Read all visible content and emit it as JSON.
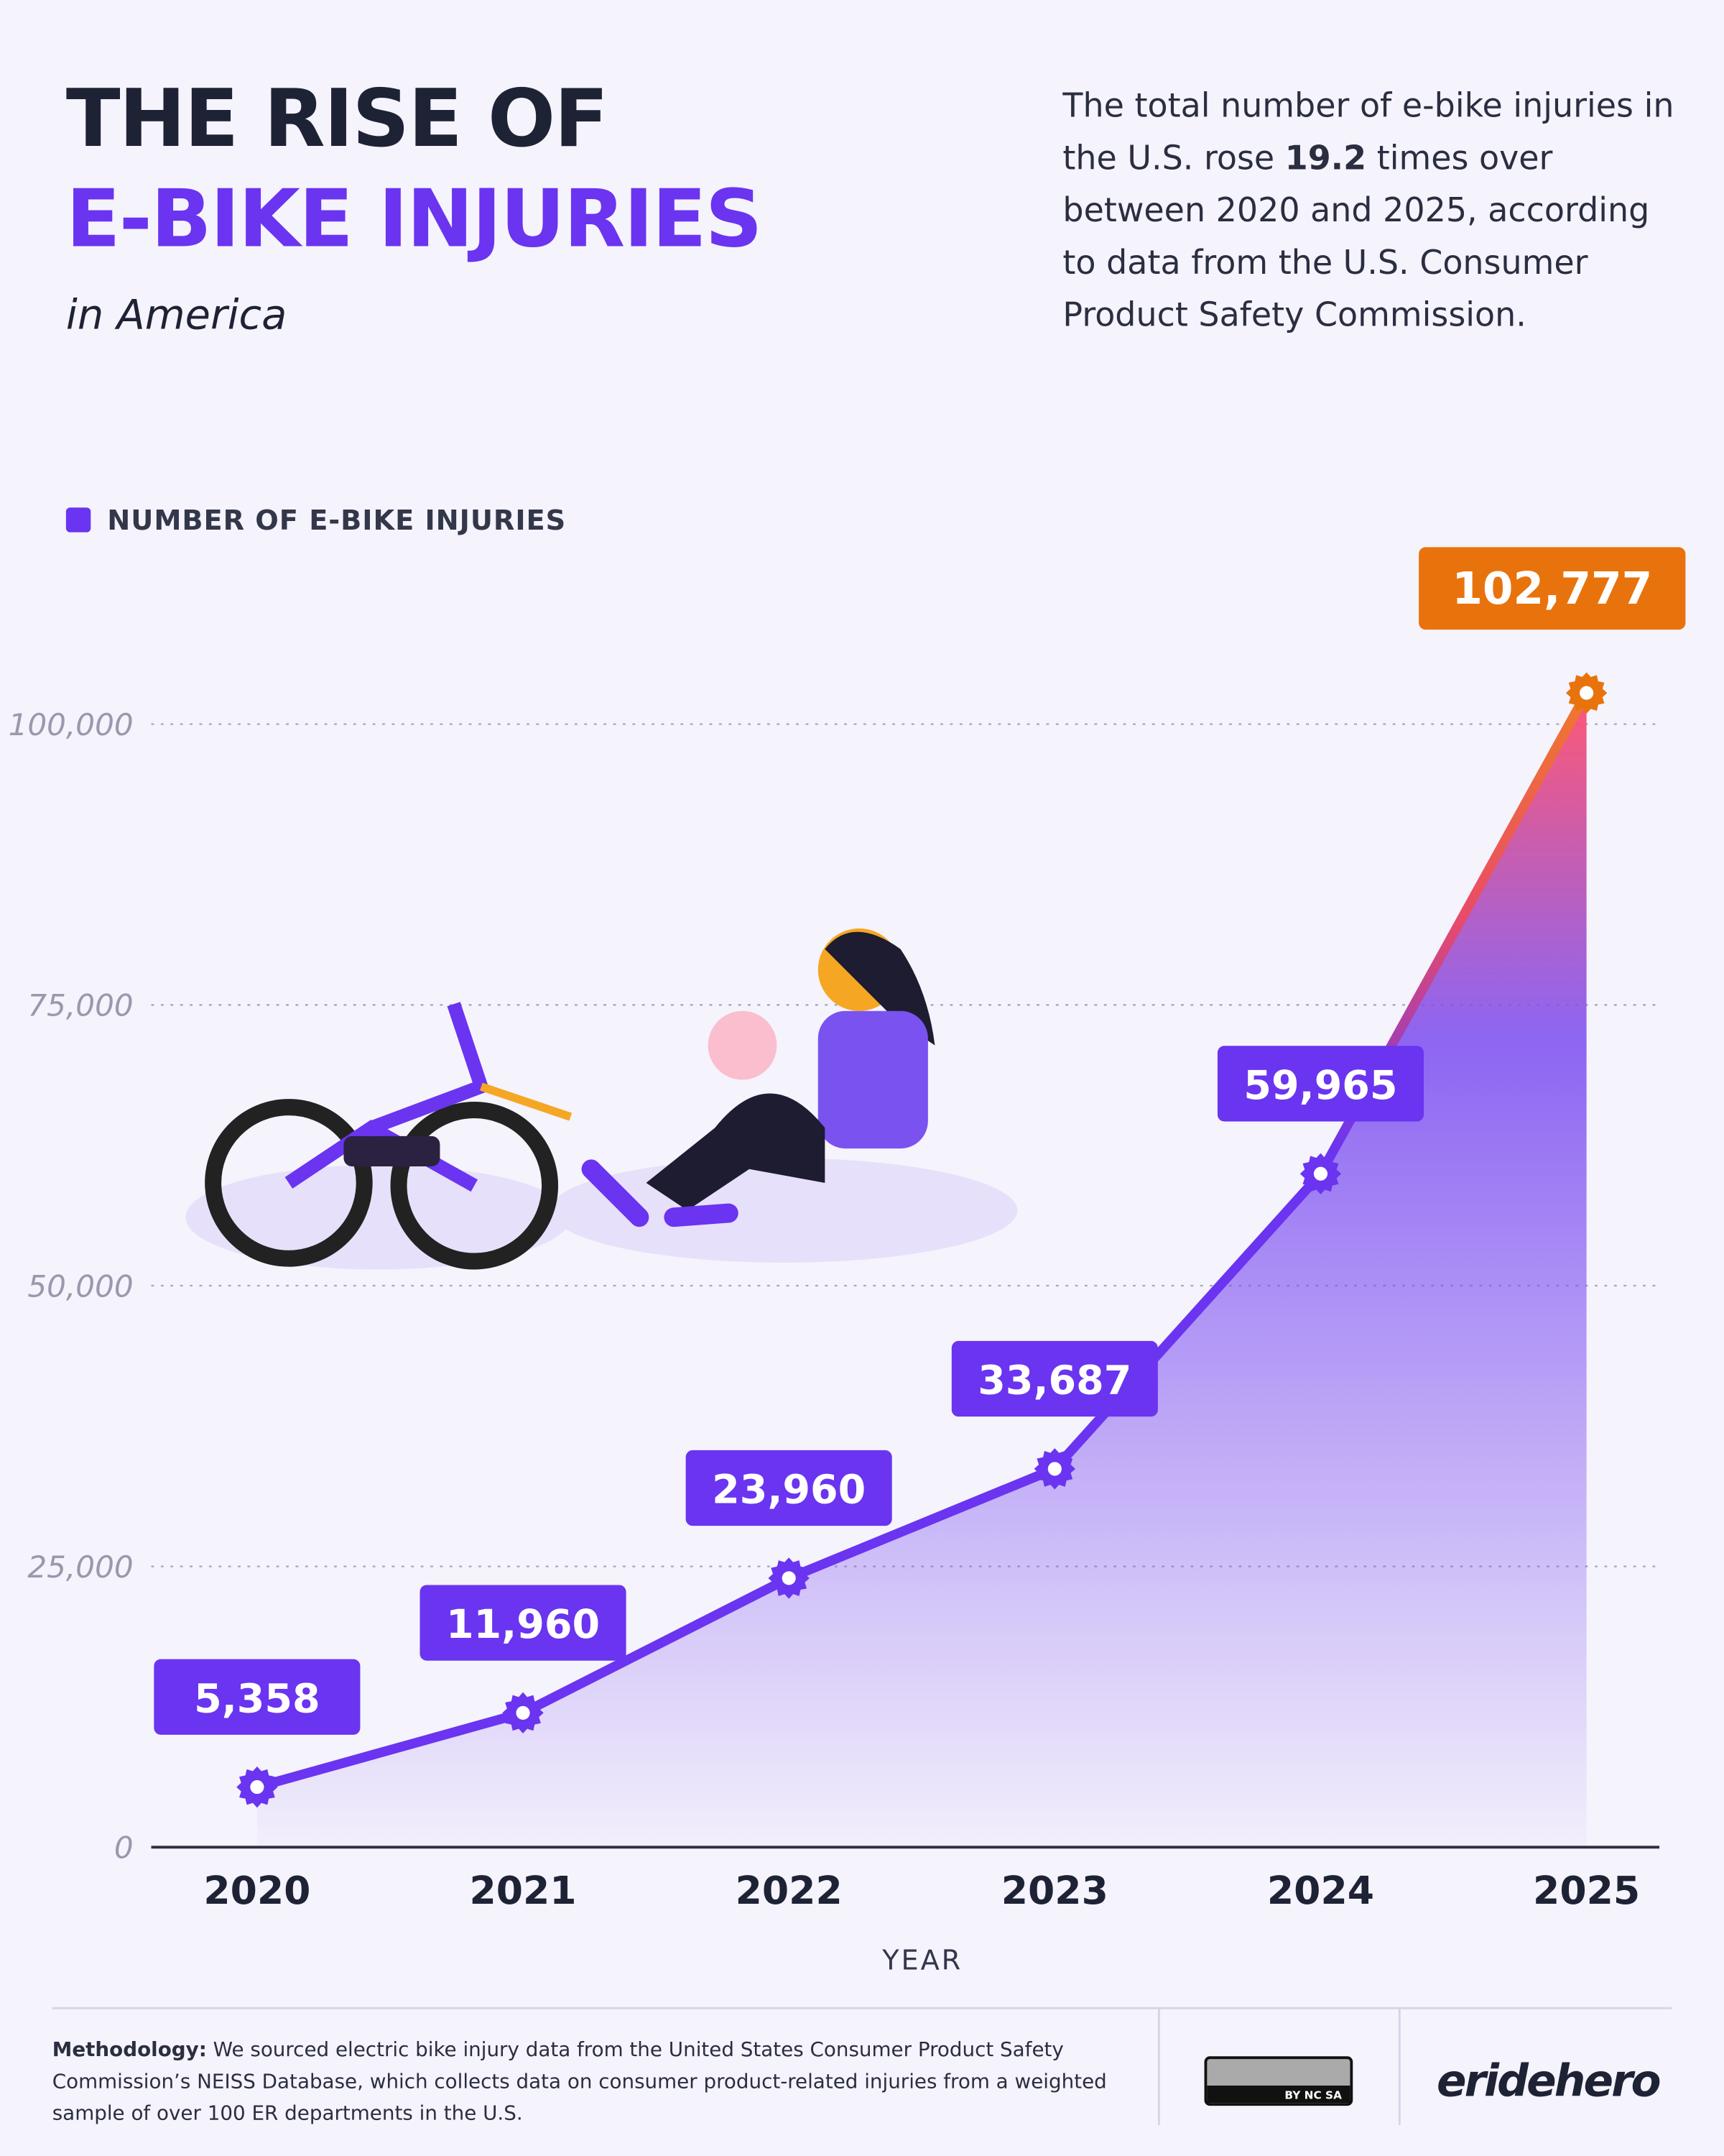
{
  "header": {
    "title_line1": "THE RISE OF",
    "title_line2": "E-BIKE INJURIES",
    "subtitle": "in America",
    "description": {
      "before": "The total number of e-bike injuries in the U.S. rose ",
      "highlight": "19.2",
      "after": " times over between 2020 and 2025, according to data from the U.S. Consumer Product Safety Commission."
    }
  },
  "chart_data": {
    "type": "line",
    "categories": [
      "2020",
      "2021",
      "2022",
      "2023",
      "2024",
      "2025"
    ],
    "series": [
      {
        "name": "NUMBER OF E-BIKE INJURIES",
        "color": "#6a34f0",
        "highlight_color": "#e8730c",
        "values": [
          5358,
          11960,
          23960,
          33687,
          59965,
          102777
        ],
        "value_labels": [
          "5,358",
          "11,960",
          "23,960",
          "33,687",
          "59,965",
          "102,777"
        ]
      }
    ],
    "x_label": "YEAR",
    "ylim": [
      0,
      115000
    ],
    "yticks": [
      0,
      {
        "value": 25000,
        "label": "25,000"
      },
      {
        "value": 50000,
        "label": "50,000"
      },
      {
        "value": 75000,
        "label": "75,000"
      },
      {
        "value": 100000,
        "label": "100,000"
      }
    ],
    "grid": true
  },
  "footer": {
    "methodology_label": "Methodology:",
    "methodology_text": "We sourced electric bike injury data from the United States Consumer Product Safety Commission’s NEISS Database, which collects data on consumer product-related injuries from a weighted sample of over 100 ER departments in the U.S.",
    "license": "BY NC SA",
    "logo": "eridehero"
  }
}
